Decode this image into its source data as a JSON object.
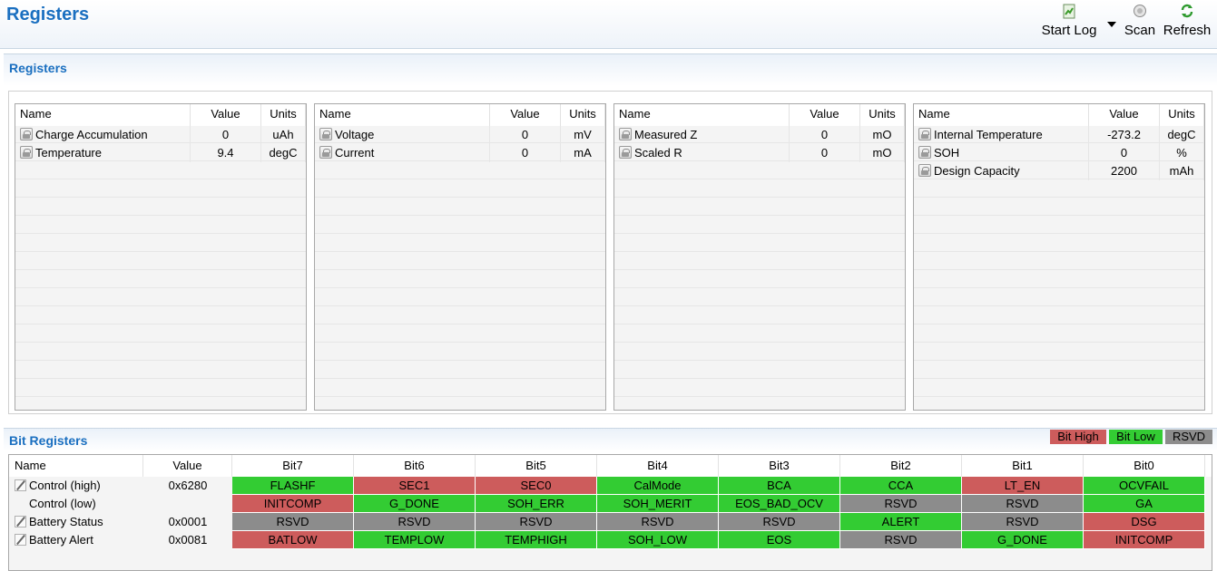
{
  "header": {
    "title": "Registers",
    "toolbar": {
      "start_log": "Start Log",
      "scan": "Scan",
      "refresh": "Refresh"
    }
  },
  "registers_section": {
    "title": "Registers"
  },
  "columns": {
    "name": "Name",
    "value": "Value",
    "units": "Units"
  },
  "register_tables": [
    {
      "rows": [
        {
          "name": "Charge Accumulation",
          "value": "0",
          "units": "uAh"
        },
        {
          "name": "Temperature",
          "value": "9.4",
          "units": "degC"
        }
      ]
    },
    {
      "rows": [
        {
          "name": "Voltage",
          "value": "0",
          "units": "mV"
        },
        {
          "name": "Current",
          "value": "0",
          "units": "mA"
        }
      ]
    },
    {
      "rows": [
        {
          "name": "Measured Z",
          "value": "0",
          "units": "mO"
        },
        {
          "name": "Scaled R",
          "value": "0",
          "units": "mO"
        }
      ]
    },
    {
      "rows": [
        {
          "name": "Internal Temperature",
          "value": "-273.2",
          "units": "degC"
        },
        {
          "name": "SOH",
          "value": "0",
          "units": "%"
        },
        {
          "name": "Design Capacity",
          "value": "2200",
          "units": "mAh"
        }
      ]
    }
  ],
  "bit_section": {
    "title": "Bit Registers",
    "legend": {
      "high": "Bit High",
      "low": "Bit Low",
      "rsvd": "RSVD"
    },
    "colors": {
      "high": "#cd5c5c",
      "low": "#33cc33",
      "rsvd": "#8c8c8c"
    },
    "headers": {
      "name": "Name",
      "value": "Value",
      "bits": [
        "Bit7",
        "Bit6",
        "Bit5",
        "Bit4",
        "Bit3",
        "Bit2",
        "Bit1",
        "Bit0"
      ]
    },
    "rows": [
      {
        "name": "Control (high)",
        "value": "0x6280",
        "editable": true,
        "bits": [
          {
            "label": "FLASHF",
            "state": "low"
          },
          {
            "label": "SEC1",
            "state": "high"
          },
          {
            "label": "SEC0",
            "state": "high"
          },
          {
            "label": "CalMode",
            "state": "low"
          },
          {
            "label": "BCA",
            "state": "low"
          },
          {
            "label": "CCA",
            "state": "low"
          },
          {
            "label": "LT_EN",
            "state": "high"
          },
          {
            "label": "OCVFAIL",
            "state": "low"
          }
        ]
      },
      {
        "name": "Control (low)",
        "value": "",
        "editable": false,
        "bits": [
          {
            "label": "INITCOMP",
            "state": "high"
          },
          {
            "label": "G_DONE",
            "state": "low"
          },
          {
            "label": "SOH_ERR",
            "state": "low"
          },
          {
            "label": "SOH_MERIT",
            "state": "low"
          },
          {
            "label": "EOS_BAD_OCV",
            "state": "low"
          },
          {
            "label": "RSVD",
            "state": "rsvd"
          },
          {
            "label": "RSVD",
            "state": "rsvd"
          },
          {
            "label": "GA",
            "state": "low"
          }
        ]
      },
      {
        "name": "Battery Status",
        "value": "0x0001",
        "editable": true,
        "bits": [
          {
            "label": "RSVD",
            "state": "rsvd"
          },
          {
            "label": "RSVD",
            "state": "rsvd"
          },
          {
            "label": "RSVD",
            "state": "rsvd"
          },
          {
            "label": "RSVD",
            "state": "rsvd"
          },
          {
            "label": "RSVD",
            "state": "rsvd"
          },
          {
            "label": "ALERT",
            "state": "low"
          },
          {
            "label": "RSVD",
            "state": "rsvd"
          },
          {
            "label": "DSG",
            "state": "high"
          }
        ]
      },
      {
        "name": "Battery Alert",
        "value": "0x0081",
        "editable": true,
        "bits": [
          {
            "label": "BATLOW",
            "state": "high"
          },
          {
            "label": "TEMPLOW",
            "state": "low"
          },
          {
            "label": "TEMPHIGH",
            "state": "low"
          },
          {
            "label": "SOH_LOW",
            "state": "low"
          },
          {
            "label": "EOS",
            "state": "low"
          },
          {
            "label": "RSVD",
            "state": "rsvd"
          },
          {
            "label": "G_DONE",
            "state": "low"
          },
          {
            "label": "INITCOMP",
            "state": "high"
          }
        ]
      }
    ]
  }
}
